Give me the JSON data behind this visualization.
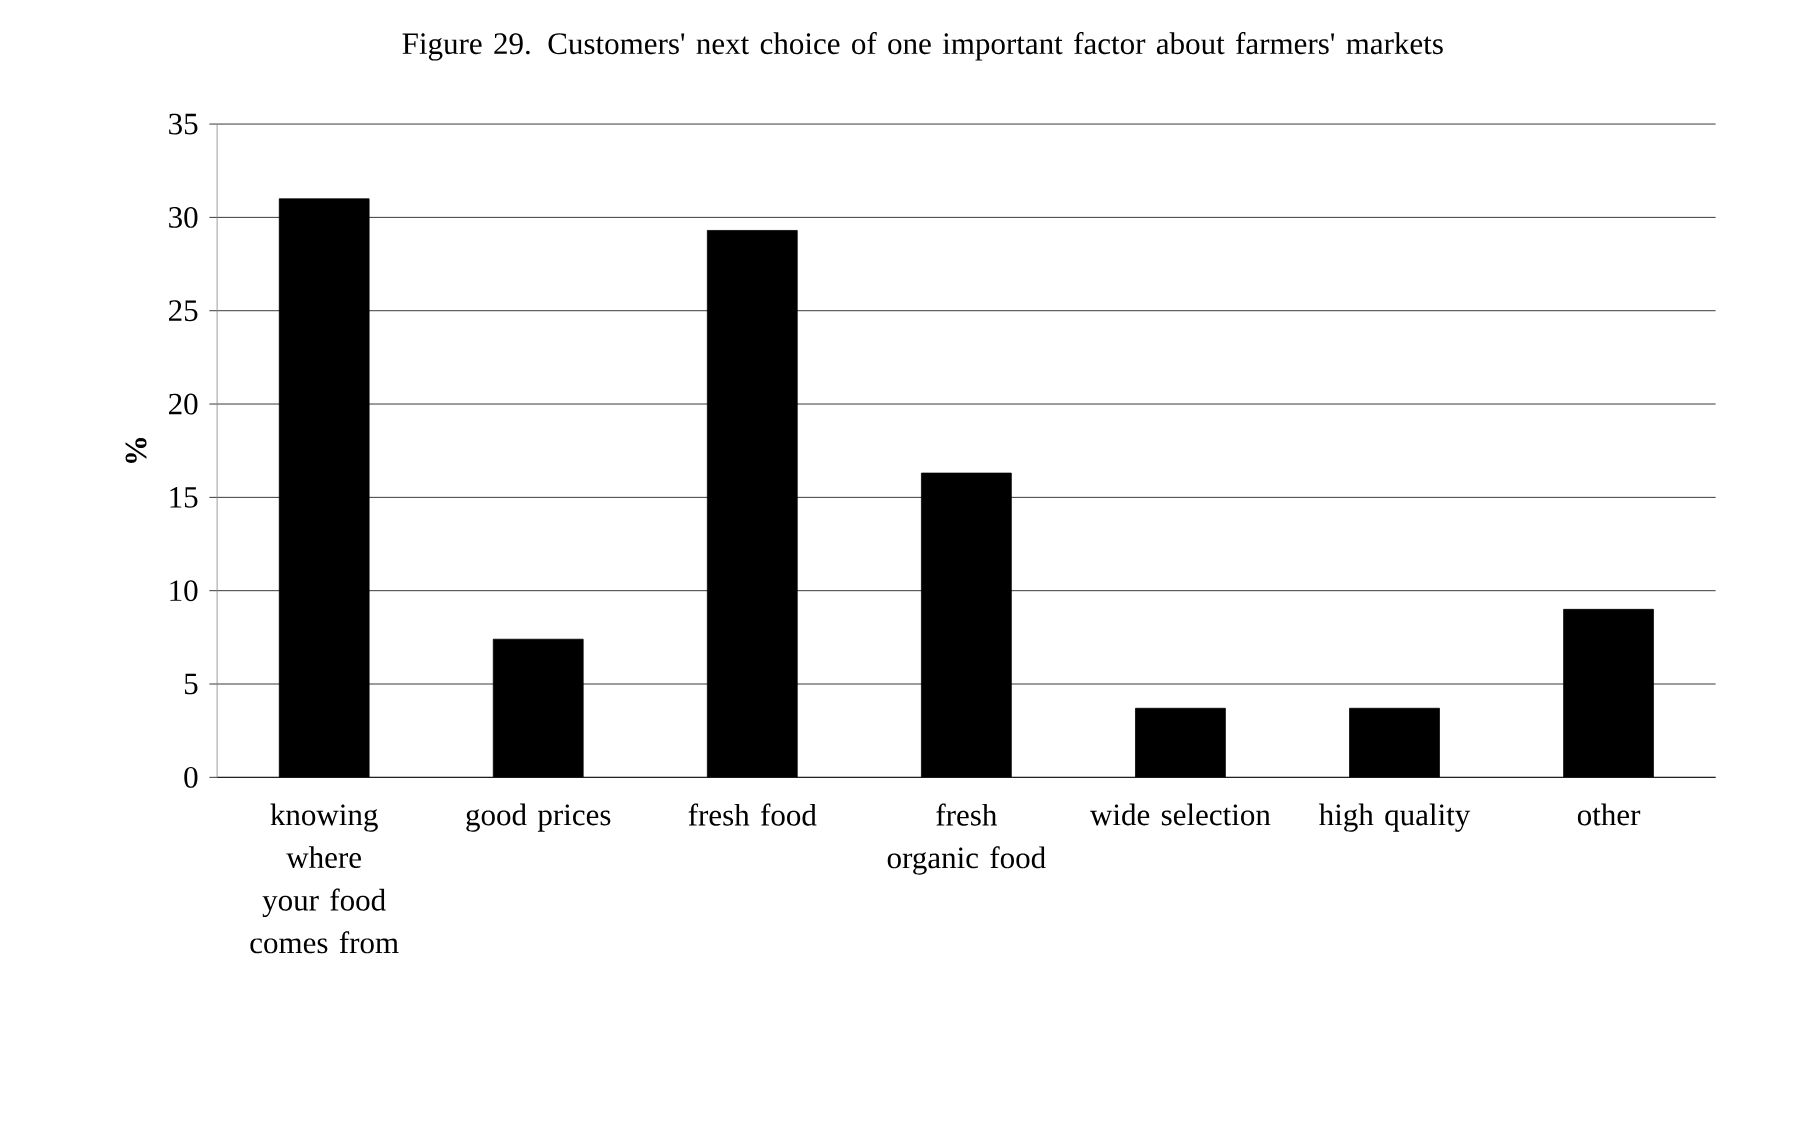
{
  "chart_data": {
    "type": "bar",
    "title": "Figure 29. Customers' next choice of one important factor about farmers' markets",
    "ylabel": "%",
    "categories": [
      "knowing where your food comes from",
      "good prices",
      "fresh food",
      "fresh organic food",
      "wide selection",
      "high quality",
      "other"
    ],
    "values": [
      31,
      7.4,
      29.3,
      16.3,
      3.7,
      3.7,
      9.0
    ],
    "color": "#000000",
    "ylim": [
      0,
      35
    ],
    "yticks": [
      0,
      5,
      10,
      15,
      20,
      25,
      30,
      35
    ],
    "grid": "y"
  }
}
